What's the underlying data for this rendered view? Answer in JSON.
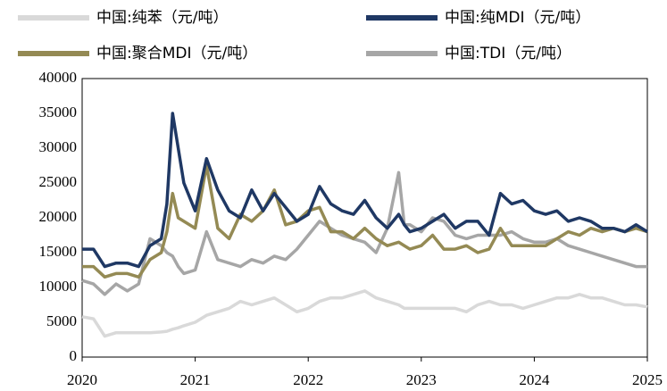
{
  "chart_data": {
    "type": "line",
    "x": [
      2020,
      2020.1,
      2020.2,
      2020.3,
      2020.4,
      2020.5,
      2020.6,
      2020.7,
      2020.75,
      2020.8,
      2020.85,
      2020.9,
      2021,
      2021.1,
      2021.2,
      2021.3,
      2021.4,
      2021.5,
      2021.6,
      2021.7,
      2021.8,
      2021.9,
      2022,
      2022.1,
      2022.2,
      2022.3,
      2022.4,
      2022.5,
      2022.6,
      2022.7,
      2022.8,
      2022.85,
      2022.9,
      2023,
      2023.1,
      2023.2,
      2023.3,
      2023.4,
      2023.5,
      2023.6,
      2023.7,
      2023.8,
      2023.9,
      2024,
      2024.1,
      2024.2,
      2024.3,
      2024.4,
      2024.5,
      2024.6,
      2024.7,
      2024.8,
      2024.9,
      2025
    ],
    "series": [
      {
        "name": "中国:纯苯（元/吨）",
        "color": "#d9d9d9",
        "values": [
          5800,
          5500,
          3000,
          3500,
          3500,
          3500,
          3500,
          3600,
          3700,
          4000,
          4200,
          4500,
          5000,
          6000,
          6500,
          7000,
          8000,
          7500,
          8000,
          8500,
          7500,
          6500,
          7000,
          8000,
          8500,
          8500,
          9000,
          9500,
          8500,
          8000,
          7500,
          7000,
          7000,
          7000,
          7000,
          7000,
          7000,
          6500,
          7500,
          8000,
          7500,
          7500,
          7000,
          7500,
          8000,
          8500,
          8500,
          9000,
          8500,
          8500,
          8000,
          7500,
          7500,
          7200
        ]
      },
      {
        "name": "中国:纯MDI（元/吨）",
        "color": "#1f3864",
        "values": [
          15500,
          15500,
          13000,
          13500,
          13500,
          13000,
          16000,
          17000,
          22000,
          35000,
          30000,
          25000,
          21000,
          28500,
          24000,
          21000,
          20000,
          24000,
          21000,
          23500,
          21500,
          19500,
          20500,
          24500,
          22000,
          21000,
          20500,
          22500,
          20000,
          18500,
          20500,
          19000,
          18000,
          18500,
          19500,
          20500,
          18500,
          19500,
          19500,
          17500,
          23500,
          22000,
          22500,
          21000,
          20500,
          21000,
          19500,
          20000,
          19500,
          18500,
          18500,
          18000,
          19000,
          18000
        ]
      },
      {
        "name": "中国:聚合MDI（元/吨）",
        "color": "#948a54",
        "values": [
          13000,
          13000,
          11500,
          12000,
          12000,
          11500,
          14000,
          15000,
          18000,
          23500,
          20000,
          19500,
          18500,
          27500,
          18500,
          17000,
          20500,
          19500,
          21000,
          24000,
          19000,
          19500,
          21000,
          21500,
          18000,
          18000,
          17000,
          18500,
          17000,
          16000,
          16500,
          16000,
          15500,
          16000,
          17500,
          15500,
          15500,
          16000,
          15000,
          15500,
          18500,
          16000,
          16000,
          16000,
          16000,
          17000,
          18000,
          17500,
          18500,
          18000,
          18500,
          18000,
          18500,
          18000
        ]
      },
      {
        "name": "中国:TDI（元/吨）",
        "color": "#a6a6a6",
        "values": [
          11000,
          10500,
          9000,
          10500,
          9500,
          10500,
          17000,
          16000,
          15000,
          14500,
          13000,
          12000,
          12500,
          18000,
          14000,
          13500,
          13000,
          14000,
          13500,
          14500,
          14000,
          15500,
          17500,
          19500,
          18500,
          17500,
          17000,
          16500,
          15000,
          18500,
          26500,
          19000,
          19000,
          18000,
          20000,
          19500,
          17500,
          17000,
          17500,
          17500,
          17500,
          18000,
          17000,
          16500,
          16500,
          17000,
          16000,
          15500,
          15000,
          14500,
          14000,
          13500,
          13000,
          13000
        ]
      }
    ],
    "xlim": [
      2020,
      2025
    ],
    "xticks": [
      2020,
      2021,
      2022,
      2023,
      2024,
      2025
    ],
    "ylim": [
      0,
      40000
    ],
    "yticks": [
      0,
      5000,
      10000,
      15000,
      20000,
      25000,
      30000,
      35000,
      40000
    ],
    "grid": false
  }
}
